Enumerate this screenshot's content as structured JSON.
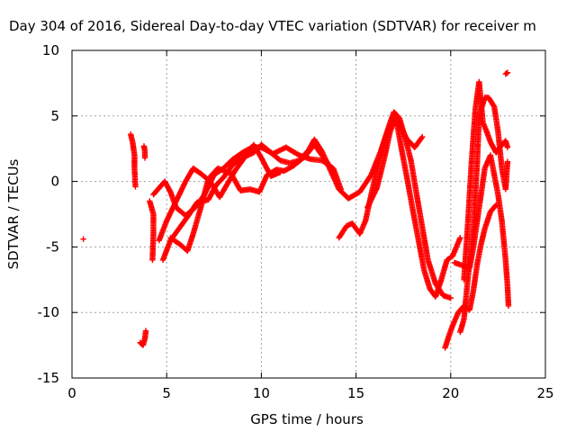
{
  "chart_data": {
    "type": "scatter",
    "title": "Day 304 of 2016, Sidereal Day-to-day VTEC variation (SDTVAR) for receiver m",
    "xlabel": "GPS time / hours",
    "ylabel": "SDTVAR / TECUs",
    "xlim": [
      0,
      25
    ],
    "ylim": [
      -15,
      10
    ],
    "xticks": [
      0,
      5,
      10,
      15,
      20,
      25
    ],
    "yticks": [
      -15,
      -10,
      -5,
      0,
      5,
      10
    ],
    "grid": true,
    "marker": "+",
    "colors": {
      "series": "#ff0000",
      "grid": "#a0a0a0"
    },
    "series": [
      {
        "name": "SDTVAR",
        "tracks": [
          [
            [
              0.6,
              -4.4
            ]
          ],
          [
            [
              3.1,
              3.6
            ],
            [
              3.2,
              3.0
            ],
            [
              3.3,
              2.0
            ],
            [
              3.3,
              1.0
            ],
            [
              3.35,
              -0.4
            ]
          ],
          [
            [
              3.8,
              2.7
            ],
            [
              3.85,
              2.3
            ],
            [
              3.85,
              1.8
            ]
          ],
          [
            [
              3.6,
              -12.3
            ],
            [
              3.75,
              -12.5
            ],
            [
              3.85,
              -12.0
            ],
            [
              3.9,
              -11.4
            ]
          ],
          [
            [
              4.1,
              -1.5
            ],
            [
              4.3,
              -2.5
            ],
            [
              4.3,
              -4.0
            ],
            [
              4.25,
              -6.0
            ]
          ],
          [
            [
              4.3,
              -1.0
            ],
            [
              4.6,
              -0.5
            ],
            [
              4.9,
              0.0
            ],
            [
              5.2,
              -0.8
            ],
            [
              5.5,
              -2.0
            ],
            [
              6.0,
              -2.6
            ],
            [
              6.5,
              -2.0
            ],
            [
              7.0,
              -1.0
            ],
            [
              7.5,
              0.5
            ],
            [
              8.0,
              1.0
            ],
            [
              8.5,
              1.7
            ],
            [
              9.0,
              2.2
            ],
            [
              9.5,
              2.6
            ],
            [
              10.0,
              2.6
            ],
            [
              10.5,
              2.2
            ],
            [
              11.0,
              1.6
            ],
            [
              11.5,
              1.4
            ],
            [
              12.0,
              1.6
            ],
            [
              12.5,
              2.4
            ],
            [
              12.8,
              3.2
            ],
            [
              13.2,
              2.3
            ],
            [
              13.6,
              1.0
            ],
            [
              14.1,
              -0.6
            ],
            [
              14.6,
              -1.3
            ],
            [
              15.2,
              -0.8
            ],
            [
              15.8,
              0.5
            ],
            [
              16.3,
              2.3
            ],
            [
              16.8,
              4.5
            ],
            [
              17.0,
              5.3
            ],
            [
              17.3,
              4.8
            ],
            [
              17.6,
              3.3
            ],
            [
              17.9,
              1.6
            ],
            [
              18.2,
              -1.0
            ],
            [
              18.5,
              -3.5
            ],
            [
              18.8,
              -6.0
            ],
            [
              19.2,
              -7.8
            ],
            [
              19.6,
              -8.7
            ],
            [
              20.0,
              -8.9
            ]
          ],
          [
            [
              4.8,
              -6.0
            ],
            [
              5.2,
              -4.5
            ],
            [
              5.7,
              -3.5
            ],
            [
              6.2,
              -2.5
            ],
            [
              6.6,
              -1.6
            ],
            [
              7.2,
              -1.4
            ],
            [
              7.6,
              -0.3
            ],
            [
              8.0,
              0.3
            ],
            [
              8.5,
              1.3
            ],
            [
              9.0,
              1.8
            ],
            [
              9.6,
              2.2
            ],
            [
              10.0,
              2.8
            ],
            [
              10.6,
              2.1
            ],
            [
              11.3,
              2.6
            ],
            [
              12.0,
              2.0
            ],
            [
              12.6,
              1.7
            ],
            [
              13.2,
              1.6
            ],
            [
              13.8,
              1.0
            ],
            [
              14.2,
              -0.6
            ]
          ],
          [
            [
              5.2,
              -4.3
            ],
            [
              5.7,
              -4.8
            ],
            [
              6.1,
              -5.3
            ],
            [
              6.4,
              -4.0
            ],
            [
              6.8,
              -2.0
            ],
            [
              7.2,
              0.2
            ],
            [
              7.7,
              1.0
            ],
            [
              8.4,
              0.6
            ],
            [
              8.9,
              -0.7
            ],
            [
              9.4,
              -0.6
            ],
            [
              9.9,
              -0.8
            ],
            [
              10.3,
              0.5
            ],
            [
              10.8,
              0.9
            ],
            [
              11.2,
              0.8
            ],
            [
              11.7,
              1.2
            ],
            [
              12.3,
              1.9
            ],
            [
              12.8,
              2.8
            ],
            [
              13.3,
              1.8
            ],
            [
              13.8,
              0.8
            ]
          ],
          [
            [
              4.6,
              -4.5
            ],
            [
              5.0,
              -3.0
            ],
            [
              5.5,
              -1.5
            ],
            [
              6.0,
              0.0
            ],
            [
              6.4,
              1.0
            ],
            [
              6.8,
              0.6
            ],
            [
              7.3,
              0.0
            ],
            [
              7.8,
              -1.2
            ],
            [
              8.2,
              -0.2
            ],
            [
              8.6,
              0.8
            ],
            [
              9.1,
              1.8
            ],
            [
              9.6,
              2.8
            ],
            [
              10.0,
              1.8
            ],
            [
              10.5,
              0.4
            ],
            [
              11.0,
              0.7
            ]
          ],
          [
            [
              14.1,
              -4.3
            ],
            [
              14.5,
              -3.4
            ],
            [
              14.8,
              -3.2
            ],
            [
              15.2,
              -4.0
            ],
            [
              15.5,
              -3.0
            ],
            [
              15.8,
              -1.0
            ],
            [
              16.2,
              1.5
            ],
            [
              16.6,
              3.6
            ],
            [
              16.9,
              4.6
            ],
            [
              17.3,
              4.3
            ],
            [
              17.7,
              3.2
            ],
            [
              18.1,
              2.6
            ],
            [
              18.5,
              3.4
            ]
          ],
          [
            [
              15.6,
              -2.0
            ],
            [
              16.1,
              -0.5
            ],
            [
              16.5,
              1.8
            ],
            [
              16.8,
              3.8
            ],
            [
              17.1,
              4.9
            ],
            [
              17.4,
              2.5
            ],
            [
              17.7,
              0.2
            ],
            [
              18.0,
              -2.2
            ],
            [
              18.3,
              -4.5
            ],
            [
              18.6,
              -6.8
            ],
            [
              18.9,
              -8.2
            ],
            [
              19.2,
              -8.8
            ],
            [
              19.5,
              -7.5
            ],
            [
              19.8,
              -6.0
            ],
            [
              20.1,
              -5.7
            ],
            [
              20.5,
              -4.3
            ]
          ],
          [
            [
              19.7,
              -12.7
            ],
            [
              19.9,
              -11.8
            ],
            [
              20.1,
              -11.0
            ],
            [
              20.4,
              -10.0
            ],
            [
              20.7,
              -9.5
            ],
            [
              21.0,
              -9.8
            ],
            [
              21.2,
              -8.3
            ],
            [
              21.4,
              -6.3
            ],
            [
              21.6,
              -4.8
            ],
            [
              21.8,
              -3.6
            ],
            [
              22.1,
              -2.3
            ],
            [
              22.4,
              -1.8
            ]
          ],
          [
            [
              20.2,
              -6.2
            ],
            [
              20.6,
              -6.4
            ],
            [
              21.0,
              -6.6
            ],
            [
              21.2,
              -5.0
            ],
            [
              21.4,
              -3.0
            ],
            [
              21.6,
              -1.0
            ],
            [
              21.8,
              1.0
            ],
            [
              22.1,
              2.0
            ],
            [
              22.3,
              0.5
            ],
            [
              22.5,
              -1.0
            ],
            [
              22.7,
              -3.0
            ],
            [
              22.9,
              -6.0
            ],
            [
              23.0,
              -8.0
            ],
            [
              23.05,
              -9.5
            ]
          ],
          [
            [
              20.5,
              -11.5
            ],
            [
              20.7,
              -10.5
            ],
            [
              20.9,
              -7.5
            ],
            [
              21.2,
              -3.5
            ],
            [
              21.4,
              1.5
            ],
            [
              21.5,
              5.0
            ],
            [
              21.8,
              6.4
            ],
            [
              22.0,
              6.4
            ],
            [
              22.3,
              5.7
            ],
            [
              22.5,
              3.8
            ],
            [
              22.7,
              1.0
            ],
            [
              22.9,
              -0.6
            ],
            [
              23.0,
              1.5
            ]
          ],
          [
            [
              20.7,
              -7.5
            ],
            [
              20.9,
              -3.3
            ],
            [
              21.1,
              1.5
            ],
            [
              21.3,
              5.5
            ],
            [
              21.5,
              7.6
            ],
            [
              21.7,
              4.5
            ],
            [
              21.9,
              3.8
            ],
            [
              22.1,
              3.0
            ],
            [
              22.4,
              2.2
            ],
            [
              22.7,
              2.8
            ],
            [
              22.9,
              3.1
            ],
            [
              23.0,
              2.6
            ]
          ],
          [
            [
              22.9,
              8.2
            ],
            [
              23.0,
              8.3
            ]
          ]
        ]
      }
    ]
  }
}
